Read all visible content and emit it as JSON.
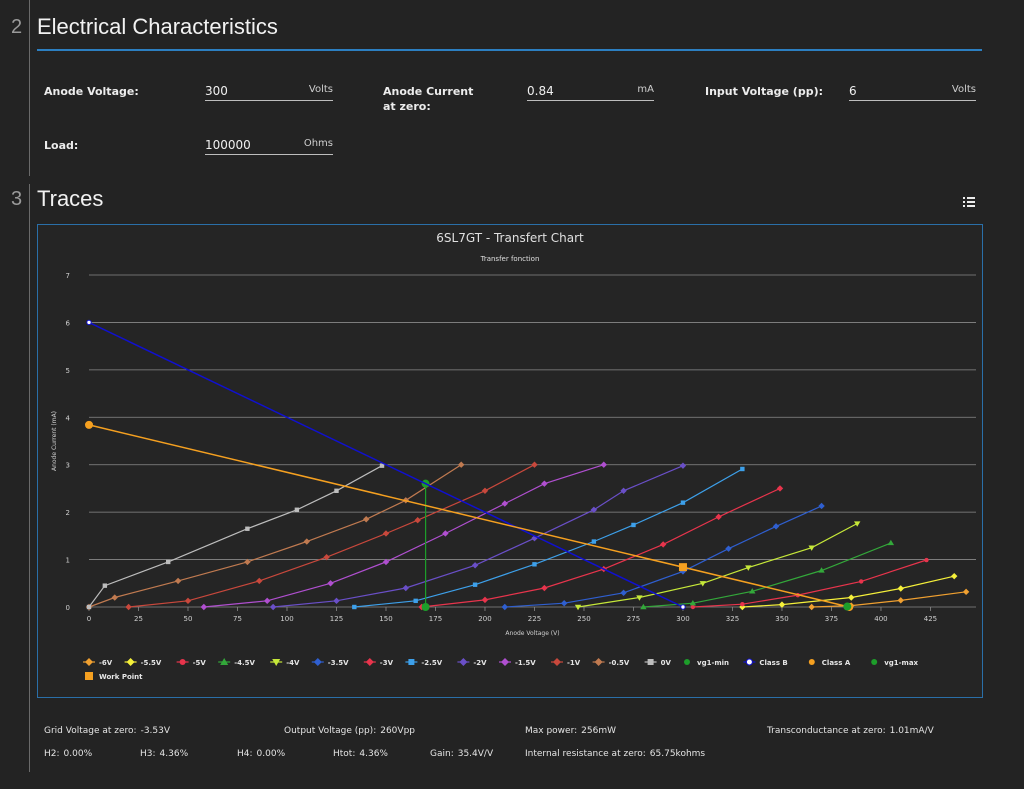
{
  "sections": [
    {
      "number": "2",
      "title": "Electrical Characteristics"
    },
    {
      "number": "3",
      "title": "Traces"
    }
  ],
  "fields": {
    "anode_voltage": {
      "label": "Anode Voltage:",
      "value": "300",
      "unit": "Volts"
    },
    "anode_current": {
      "label": "Anode Current at zero:",
      "value": "0.84",
      "unit": "mA"
    },
    "input_voltage": {
      "label": "Input Voltage (pp):",
      "value": "6",
      "unit": "Volts"
    },
    "load": {
      "label": "Load:",
      "value": "100000",
      "unit": "Ohms"
    }
  },
  "icons": {
    "menu": "list-icon"
  },
  "stats": {
    "grid_voltage": {
      "label": "Grid Voltage at zero:",
      "value": "-3.53V"
    },
    "output_voltage": {
      "label": "Output Voltage (pp):",
      "value": "260Vpp"
    },
    "max_power": {
      "label": "Max power:",
      "value": "256mW"
    },
    "transconductance": {
      "label": "Transconductance at zero:",
      "value": "1.01mA/V"
    },
    "h2": {
      "label": "H2:",
      "value": "0.00%"
    },
    "h3": {
      "label": "H3:",
      "value": "4.36%"
    },
    "h4": {
      "label": "H4:",
      "value": "0.00%"
    },
    "htot": {
      "label": "Htot:",
      "value": "4.36%"
    },
    "gain": {
      "label": "Gain:",
      "value": "35.4V/V"
    },
    "internal_resistance": {
      "label": "Internal resistance at zero:",
      "value": "65.75kohms"
    }
  },
  "chart_data": {
    "type": "line",
    "title": "6SL7GT - Transfert Chart",
    "subtitle": "Transfer fonction",
    "xlabel": "Anode Voltage (V)",
    "ylabel": "Anode Current (mA)",
    "xlim": [
      0,
      448
    ],
    "ylim": [
      0,
      7
    ],
    "xticks": [
      0,
      25,
      50,
      75,
      100,
      125,
      150,
      175,
      200,
      225,
      250,
      275,
      300,
      325,
      350,
      375,
      400,
      425
    ],
    "yticks": [
      0,
      1,
      2,
      3,
      4,
      5,
      6,
      7
    ],
    "grid": true,
    "legend_position": "bottom",
    "colors": {
      "grid": "#8a8a8a",
      "axis_text": "#d0d0d0",
      "title": "#e0e0e0",
      "border": "#2a6fa8"
    },
    "series": [
      {
        "name": "-6V",
        "color": "#f0a030",
        "marker": "diamond",
        "points": [
          [
            365,
            0
          ],
          [
            385,
            0.03
          ],
          [
            410,
            0.14
          ],
          [
            443,
            0.32
          ]
        ]
      },
      {
        "name": "-5.5V",
        "color": "#f5f03a",
        "marker": "diamond",
        "points": [
          [
            330,
            0
          ],
          [
            350,
            0.05
          ],
          [
            385,
            0.2
          ],
          [
            410,
            0.39
          ],
          [
            437,
            0.65
          ]
        ]
      },
      {
        "name": "-5V",
        "color": "#e8344c",
        "marker": "circle",
        "points": [
          [
            305,
            0
          ],
          [
            330,
            0.06
          ],
          [
            358,
            0.25
          ],
          [
            390,
            0.54
          ],
          [
            423,
            0.99
          ]
        ]
      },
      {
        "name": "-4.5V",
        "color": "#33a83a",
        "marker": "triangle",
        "points": [
          [
            280,
            0
          ],
          [
            305,
            0.08
          ],
          [
            335,
            0.33
          ],
          [
            370,
            0.77
          ],
          [
            405,
            1.35
          ]
        ]
      },
      {
        "name": "-4V",
        "color": "#c6e839",
        "marker": "triangle-down",
        "points": [
          [
            247,
            0
          ],
          [
            278,
            0.2
          ],
          [
            310,
            0.5
          ],
          [
            333,
            0.83
          ],
          [
            365,
            1.25
          ],
          [
            388,
            1.76
          ]
        ]
      },
      {
        "name": "-3.5V",
        "color": "#2f5fd0",
        "marker": "diamond",
        "points": [
          [
            210,
            0
          ],
          [
            240,
            0.08
          ],
          [
            270,
            0.3
          ],
          [
            300,
            0.75
          ],
          [
            323,
            1.23
          ],
          [
            347,
            1.7
          ],
          [
            370,
            2.13
          ]
        ]
      },
      {
        "name": "-3V",
        "color": "#e8344c",
        "marker": "diamond",
        "points": [
          [
            168,
            0
          ],
          [
            200,
            0.15
          ],
          [
            230,
            0.4
          ],
          [
            260,
            0.8
          ],
          [
            290,
            1.32
          ],
          [
            318,
            1.9
          ],
          [
            349,
            2.5
          ]
        ]
      },
      {
        "name": "-2.5V",
        "color": "#3da0ea",
        "marker": "square",
        "points": [
          [
            134,
            0
          ],
          [
            165,
            0.13
          ],
          [
            195,
            0.47
          ],
          [
            225,
            0.9
          ],
          [
            255,
            1.38
          ],
          [
            275,
            1.73
          ],
          [
            300,
            2.2
          ],
          [
            330,
            2.91
          ]
        ]
      },
      {
        "name": "-2V",
        "color": "#6a4fc8",
        "marker": "diamond",
        "points": [
          [
            93,
            0
          ],
          [
            125,
            0.13
          ],
          [
            160,
            0.4
          ],
          [
            195,
            0.88
          ],
          [
            225,
            1.45
          ],
          [
            255,
            2.05
          ],
          [
            270,
            2.45
          ],
          [
            300,
            2.98
          ]
        ]
      },
      {
        "name": "-1.5V",
        "color": "#b04fd0",
        "marker": "diamond",
        "points": [
          [
            58,
            0
          ],
          [
            90,
            0.13
          ],
          [
            122,
            0.5
          ],
          [
            150,
            0.95
          ],
          [
            180,
            1.55
          ],
          [
            210,
            2.18
          ],
          [
            230,
            2.6
          ],
          [
            260,
            3.0
          ]
        ]
      },
      {
        "name": "-1V",
        "color": "#c8483c",
        "marker": "diamond",
        "points": [
          [
            20,
            0
          ],
          [
            50,
            0.13
          ],
          [
            86,
            0.55
          ],
          [
            120,
            1.05
          ],
          [
            150,
            1.55
          ],
          [
            166,
            1.83
          ],
          [
            200,
            2.45
          ],
          [
            225,
            3.0
          ]
        ]
      },
      {
        "name": "-0.5V",
        "color": "#c07a50",
        "marker": "diamond",
        "points": [
          [
            0,
            0
          ],
          [
            13,
            0.2
          ],
          [
            45,
            0.55
          ],
          [
            80,
            0.95
          ],
          [
            110,
            1.38
          ],
          [
            140,
            1.85
          ],
          [
            160,
            2.25
          ],
          [
            188,
            3.0
          ]
        ]
      },
      {
        "name": "0V",
        "color": "#bdbdbd",
        "marker": "square",
        "points": [
          [
            0,
            0
          ],
          [
            8,
            0.45
          ],
          [
            40,
            0.95
          ],
          [
            80,
            1.65
          ],
          [
            105,
            2.05
          ],
          [
            125,
            2.45
          ],
          [
            148,
            2.98
          ]
        ]
      },
      {
        "name": "vg1-min",
        "color": "#1d9e2a",
        "marker": "circle",
        "points": [
          [
            170,
            2.6
          ],
          [
            170,
            0
          ]
        ]
      },
      {
        "name": "Class B",
        "color": "#1010cf",
        "marker": "circle-open",
        "points": [
          [
            0,
            6
          ],
          [
            300,
            0
          ]
        ]
      },
      {
        "name": "Class A",
        "color": "#f5a020",
        "marker": "circle",
        "points": [
          [
            0,
            3.84
          ],
          [
            384,
            0
          ]
        ]
      },
      {
        "name": "vg1-max",
        "color": "#1d9e2a",
        "marker": "circle",
        "points": [
          [
            383,
            0.01
          ]
        ]
      },
      {
        "name": "Work Point",
        "color": "#f5a020",
        "marker": "square",
        "points": [
          [
            300,
            0.84
          ]
        ]
      }
    ]
  }
}
